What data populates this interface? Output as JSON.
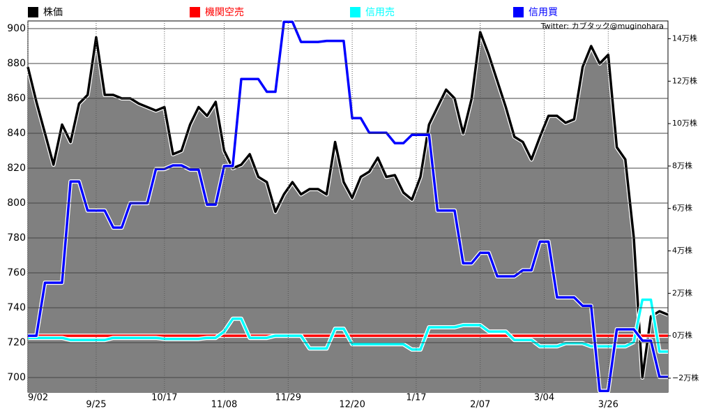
{
  "chart_data": {
    "type": "line",
    "annotation": "Twitter: カブタック@muginohara",
    "x": [
      0,
      2,
      4,
      6,
      8,
      10,
      12,
      14,
      16,
      18,
      20,
      22,
      24,
      26,
      28,
      30,
      32,
      34,
      36,
      38,
      40,
      42,
      44,
      46,
      48,
      50,
      52,
      54,
      56,
      58,
      60,
      62,
      64,
      66,
      68,
      70,
      72,
      74,
      76,
      78,
      80,
      82,
      84,
      86,
      88,
      90,
      92,
      94,
      96,
      98,
      100,
      102,
      104,
      106,
      108,
      110,
      112,
      114,
      116,
      118,
      120,
      122,
      124,
      126,
      128,
      130,
      132,
      134,
      136,
      138,
      140,
      142,
      144,
      146,
      148,
      150
    ],
    "xlim": [
      0,
      150
    ],
    "xticks": [
      {
        "value": 0,
        "label": "9/02"
      },
      {
        "value": 16,
        "label": "9/25"
      },
      {
        "value": 32,
        "label": "10/17"
      },
      {
        "value": 46,
        "label": "11/08"
      },
      {
        "value": 61,
        "label": "11/29"
      },
      {
        "value": 76,
        "label": "12/20"
      },
      {
        "value": 91,
        "label": "1/17"
      },
      {
        "value": 106,
        "label": "2/07"
      },
      {
        "value": 121,
        "label": "3/04"
      },
      {
        "value": 136,
        "label": "3/26"
      }
    ],
    "ylim": [
      691.6,
      904.4
    ],
    "yticks": [
      700,
      720,
      740,
      760,
      780,
      800,
      820,
      840,
      860,
      880,
      900
    ],
    "y2lim": [
      -26600,
      148400
    ],
    "y2ticks": [
      {
        "value": -20000,
        "label": "−2万株"
      },
      {
        "value": 0,
        "label": "0万株"
      },
      {
        "value": 20000,
        "label": "2万株"
      },
      {
        "value": 40000,
        "label": "4万株"
      },
      {
        "value": 60000,
        "label": "6万株"
      },
      {
        "value": 80000,
        "label": "8万株"
      },
      {
        "value": 100000,
        "label": "10万株"
      },
      {
        "value": 120000,
        "label": "12万株"
      },
      {
        "value": 140000,
        "label": "14万株"
      }
    ],
    "grid": true,
    "series": [
      {
        "name": "株価",
        "color": "#000000",
        "area_color": "#808080",
        "axis": "y",
        "values": [
          878,
          858,
          840,
          822,
          845,
          835,
          857,
          862,
          895,
          862,
          862,
          860,
          860,
          857,
          855,
          853,
          855,
          828,
          830,
          845,
          855,
          850,
          858,
          830,
          820,
          822,
          828,
          815,
          812,
          795,
          805,
          812,
          805,
          808,
          808,
          805,
          835,
          812,
          803,
          815,
          818,
          826,
          815,
          816,
          806,
          802,
          815,
          845,
          855,
          865,
          860,
          840,
          860,
          898,
          885,
          870,
          855,
          838,
          835,
          825,
          838,
          850,
          850,
          846,
          848,
          878,
          890,
          880,
          885,
          832,
          825,
          780,
          700,
          735,
          738,
          736
        ]
      },
      {
        "name": "機関空売",
        "color": "#ff0000",
        "axis": "y2",
        "values": [
          0,
          0,
          0,
          0,
          0,
          0,
          0,
          0,
          0,
          0,
          0,
          0,
          0,
          0,
          0,
          0,
          0,
          0,
          0,
          0,
          0,
          0,
          0,
          0,
          0,
          0,
          0,
          0,
          0,
          0,
          0,
          0,
          0,
          0,
          0,
          0,
          0,
          0,
          0,
          0,
          0,
          0,
          0,
          0,
          0,
          0,
          0,
          0,
          0,
          0,
          0,
          0,
          0,
          0,
          0,
          0,
          0,
          0,
          0,
          0,
          0,
          0,
          0,
          0,
          0,
          0,
          0,
          0,
          0,
          0,
          0,
          0,
          0,
          0,
          0,
          0
        ]
      },
      {
        "name": "信用売",
        "color": "#00ffff",
        "axis": "y2",
        "values": [
          -1000,
          -1000,
          -1000,
          -1000,
          -1000,
          -2000,
          -2000,
          -2000,
          -2000,
          -2000,
          -1000,
          -1000,
          -1000,
          -1000,
          -1000,
          -1000,
          -1500,
          -1500,
          -1500,
          -1500,
          -1500,
          -1000,
          -1000,
          2000,
          8000,
          8000,
          -1000,
          -1000,
          -1000,
          0,
          0,
          0,
          0,
          -6000,
          -6000,
          -6000,
          3300,
          3300,
          -4000,
          -4000,
          -4000,
          -4000,
          -4000,
          -4000,
          -4000,
          -6500,
          -6500,
          4000,
          4000,
          4000,
          4000,
          5000,
          5000,
          5000,
          2000,
          2000,
          2000,
          -2000,
          -2000,
          -2000,
          -5000,
          -5000,
          -5000,
          -3500,
          -3500,
          -3500,
          -5000,
          -5000,
          -5000,
          -5000,
          -5000,
          -3000,
          17000,
          17000,
          -7500,
          -7500
        ]
      },
      {
        "name": "信用買",
        "color": "#0000ff",
        "axis": "y2",
        "values": [
          0,
          0,
          25000,
          25000,
          25000,
          72700,
          72700,
          59000,
          59000,
          59000,
          51000,
          51000,
          62500,
          62500,
          62500,
          78600,
          78600,
          80300,
          80300,
          78300,
          78300,
          61800,
          61800,
          80000,
          80000,
          121000,
          121000,
          121000,
          115000,
          115000,
          148000,
          148000,
          138500,
          138500,
          138500,
          139000,
          139000,
          139000,
          102600,
          102600,
          95700,
          95700,
          95700,
          90800,
          90800,
          94700,
          94700,
          94700,
          59000,
          59000,
          59000,
          34200,
          34200,
          39100,
          39100,
          28000,
          28000,
          28000,
          30900,
          30900,
          44400,
          44400,
          18100,
          18100,
          18100,
          14100,
          14100,
          -26000,
          -26000,
          3000,
          3000,
          3000,
          -2300,
          -2300,
          -19400,
          -19400
        ]
      }
    ]
  }
}
